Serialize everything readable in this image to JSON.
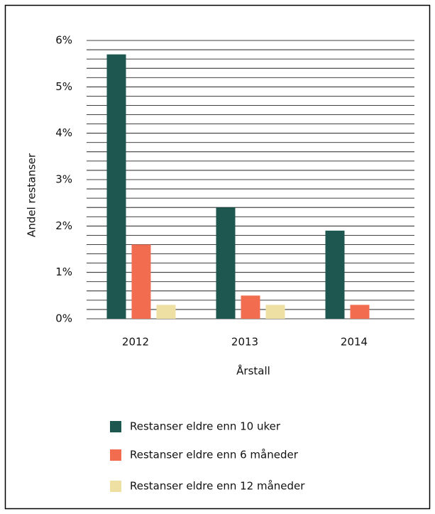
{
  "chart_data": {
    "type": "bar",
    "categories": [
      "2012",
      "2013",
      "2014"
    ],
    "series": [
      {
        "name": "Restanser eldre enn 10 uker",
        "color": "#1d5750",
        "values": [
          5.7,
          2.4,
          1.9
        ]
      },
      {
        "name": "Restanser eldre enn 6 måneder",
        "color": "#f26c4f",
        "values": [
          1.6,
          0.5,
          0.3
        ]
      },
      {
        "name": "Restanser eldre enn 12 måneder",
        "color": "#eee0a2",
        "values": [
          0.3,
          0.3,
          null
        ]
      }
    ],
    "xlabel": "Årstall",
    "ylabel": "Andel restanser",
    "ylim": [
      0,
      6
    ],
    "yticks": [
      {
        "value": 0,
        "label": "0%"
      },
      {
        "value": 1,
        "label": "1%"
      },
      {
        "value": 2,
        "label": "2%"
      },
      {
        "value": 3,
        "label": "3%"
      },
      {
        "value": 4,
        "label": "4%"
      },
      {
        "value": 5,
        "label": "5%"
      },
      {
        "value": 6,
        "label": "6%"
      }
    ],
    "yminorticks": [
      0.2,
      0.4,
      0.6,
      0.8,
      1.2,
      1.4,
      1.6,
      1.8,
      2.2,
      2.4,
      2.6,
      2.8,
      3.2,
      3.4,
      3.6,
      3.8,
      4.2,
      4.4,
      4.6,
      4.8,
      5.2,
      5.4,
      5.6,
      5.8
    ],
    "grid": true
  }
}
